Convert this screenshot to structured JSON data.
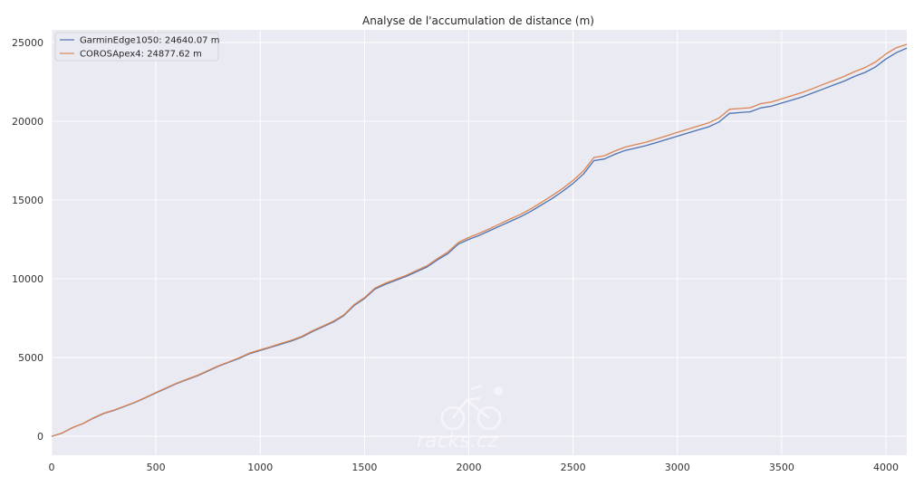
{
  "chart_data": {
    "type": "line",
    "title": "Analyse de l'accumulation de distance (m)",
    "xlabel": "",
    "ylabel": "",
    "xlim": [
      0,
      4100
    ],
    "ylim": [
      -1200,
      25800
    ],
    "x_ticks": [
      0,
      500,
      1000,
      1500,
      2000,
      2500,
      3000,
      3500,
      4000
    ],
    "y_ticks": [
      0,
      5000,
      10000,
      15000,
      20000,
      25000
    ],
    "grid": true,
    "legend_position": "top-left",
    "series": [
      {
        "name": "GarminEdge1050: 24640.07 m",
        "color": "#4c72b0",
        "x": [
          0,
          50,
          100,
          150,
          200,
          250,
          300,
          350,
          400,
          450,
          500,
          550,
          600,
          650,
          700,
          750,
          800,
          850,
          900,
          950,
          1000,
          1050,
          1100,
          1150,
          1200,
          1250,
          1300,
          1350,
          1400,
          1450,
          1500,
          1550,
          1600,
          1650,
          1700,
          1750,
          1800,
          1850,
          1900,
          1950,
          2000,
          2050,
          2100,
          2150,
          2200,
          2250,
          2300,
          2350,
          2400,
          2450,
          2500,
          2550,
          2600,
          2650,
          2700,
          2750,
          2800,
          2850,
          2900,
          2950,
          3000,
          3050,
          3100,
          3150,
          3200,
          3250,
          3300,
          3350,
          3400,
          3450,
          3500,
          3550,
          3600,
          3650,
          3700,
          3750,
          3800,
          3850,
          3900,
          3950,
          4000,
          4050,
          4100
        ],
        "y": [
          0,
          200,
          550,
          800,
          1150,
          1450,
          1650,
          1900,
          2150,
          2450,
          2750,
          3050,
          3350,
          3600,
          3850,
          4150,
          4450,
          4700,
          4950,
          5250,
          5450,
          5650,
          5850,
          6050,
          6300,
          6650,
          6950,
          7250,
          7650,
          8300,
          8750,
          9350,
          9650,
          9900,
          10150,
          10450,
          10750,
          11200,
          11600,
          12200,
          12500,
          12750,
          13050,
          13350,
          13650,
          13950,
          14300,
          14700,
          15100,
          15550,
          16050,
          16650,
          17500,
          17600,
          17900,
          18150,
          18300,
          18450,
          18650,
          18850,
          19050,
          19250,
          19450,
          19650,
          19950,
          20500,
          20550,
          20600,
          20850,
          20950,
          21150,
          21350,
          21550,
          21800,
          22050,
          22300,
          22550,
          22850,
          23100,
          23450,
          23950,
          24350,
          24640
        ]
      },
      {
        "name": "COROSApex4: 24877.62 m",
        "color": "#dd8452",
        "x": [
          0,
          50,
          100,
          150,
          200,
          250,
          300,
          350,
          400,
          450,
          500,
          550,
          600,
          650,
          700,
          750,
          800,
          850,
          900,
          950,
          1000,
          1050,
          1100,
          1150,
          1200,
          1250,
          1300,
          1350,
          1400,
          1450,
          1500,
          1550,
          1600,
          1650,
          1700,
          1750,
          1800,
          1850,
          1900,
          1950,
          2000,
          2050,
          2100,
          2150,
          2200,
          2250,
          2300,
          2350,
          2400,
          2450,
          2500,
          2550,
          2600,
          2650,
          2700,
          2750,
          2800,
          2850,
          2900,
          2950,
          3000,
          3050,
          3100,
          3150,
          3200,
          3250,
          3300,
          3350,
          3400,
          3450,
          3500,
          3550,
          3600,
          3650,
          3700,
          3750,
          3800,
          3850,
          3900,
          3950,
          4000,
          4050,
          4100
        ],
        "y": [
          0,
          210,
          560,
          810,
          1170,
          1470,
          1670,
          1920,
          2170,
          2470,
          2780,
          3080,
          3380,
          3630,
          3880,
          4180,
          4480,
          4730,
          4990,
          5290,
          5490,
          5690,
          5900,
          6100,
          6350,
          6700,
          7000,
          7300,
          7700,
          8360,
          8810,
          9410,
          9720,
          9970,
          10220,
          10530,
          10830,
          11290,
          11700,
          12310,
          12620,
          12880,
          13180,
          13490,
          13800,
          14100,
          14460,
          14870,
          15280,
          15730,
          16240,
          16850,
          17700,
          17810,
          18110,
          18360,
          18520,
          18670,
          18880,
          19080,
          19290,
          19490,
          19700,
          19900,
          20210,
          20760,
          20810,
          20860,
          21120,
          21220,
          21420,
          21630,
          21830,
          22080,
          22340,
          22590,
          22850,
          23150,
          23410,
          23760,
          24270,
          24670,
          24878
        ]
      }
    ]
  },
  "watermark": {
    "text": "racks.cz",
    "icon": "cyclist-logo-icon"
  }
}
